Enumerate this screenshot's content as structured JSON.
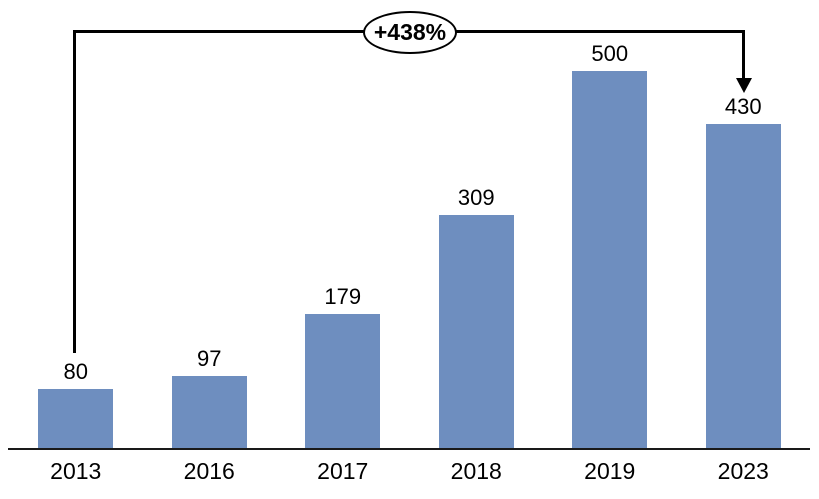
{
  "chart_data": {
    "type": "bar",
    "title": "",
    "xlabel": "",
    "ylabel": "",
    "categories": [
      "2013",
      "2016",
      "2017",
      "2018",
      "2019",
      "2023"
    ],
    "values": [
      80,
      97,
      179,
      309,
      500,
      430
    ],
    "data_labels": true,
    "y_axis_visible": false,
    "grid": false,
    "legend_position": "none",
    "annotation": {
      "label": "+438%",
      "type": "growth-bracket-arrow",
      "from_category": "2013",
      "to_category": "2023"
    },
    "colors": {
      "bar": "#6E8EBF",
      "axis_line": "#1a1a1a",
      "annotation_line": "#000000",
      "label_text": "#000000"
    }
  }
}
